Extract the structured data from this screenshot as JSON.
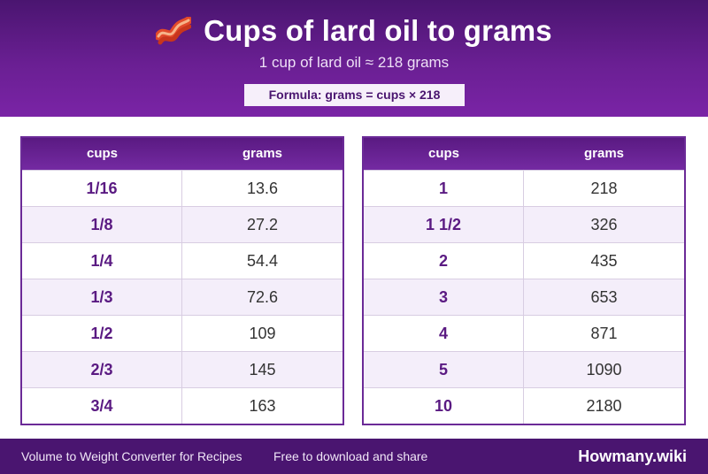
{
  "header": {
    "title": "Cups of lard oil to grams",
    "subtitle": "1 cup of lard oil ≈ 218 grams",
    "formula": "Formula: grams = cups × 218",
    "icon": "bacon-icon"
  },
  "tables": [
    {
      "col1": "cups",
      "col2": "grams",
      "rows": [
        {
          "cups": "1/16",
          "grams": "13.6"
        },
        {
          "cups": "1/8",
          "grams": "27.2"
        },
        {
          "cups": "1/4",
          "grams": "54.4"
        },
        {
          "cups": "1/3",
          "grams": "72.6"
        },
        {
          "cups": "1/2",
          "grams": "109"
        },
        {
          "cups": "2/3",
          "grams": "145"
        },
        {
          "cups": "3/4",
          "grams": "163"
        }
      ]
    },
    {
      "col1": "cups",
      "col2": "grams",
      "rows": [
        {
          "cups": "1",
          "grams": "218"
        },
        {
          "cups": "1 1/2",
          "grams": "326"
        },
        {
          "cups": "2",
          "grams": "435"
        },
        {
          "cups": "3",
          "grams": "653"
        },
        {
          "cups": "4",
          "grams": "871"
        },
        {
          "cups": "5",
          "grams": "1090"
        },
        {
          "cups": "10",
          "grams": "2180"
        }
      ]
    }
  ],
  "footer": {
    "left": "Volume to Weight Converter for Recipes",
    "middle": "Free to download and share",
    "brand": "Howmany.wiki"
  },
  "colors": {
    "header_top": "#4a1570",
    "header_bottom": "#7a24a6",
    "accent": "#5a1a82",
    "row_alt": "#f4eefa"
  }
}
